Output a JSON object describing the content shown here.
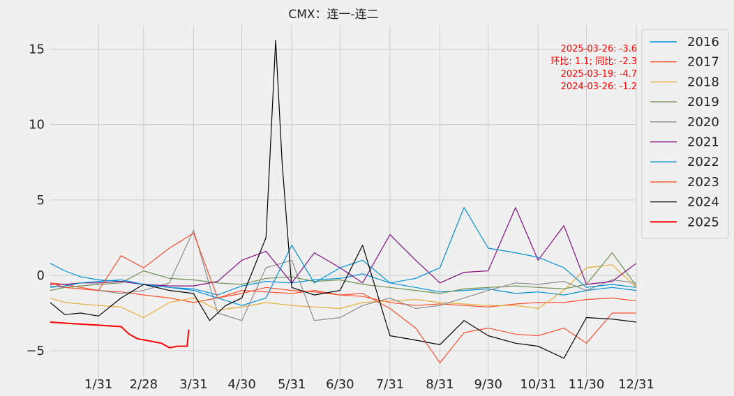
{
  "chart_data": {
    "type": "line",
    "title": "CMX：连一-连二",
    "xlabel": "",
    "ylabel": "",
    "x_ticks": [
      "1/31",
      "2/28",
      "3/31",
      "4/30",
      "5/31",
      "6/30",
      "7/31",
      "8/31",
      "9/30",
      "10/31",
      "11/30",
      "12/31"
    ],
    "x_tick_days": [
      31,
      59,
      90,
      120,
      151,
      181,
      212,
      243,
      273,
      304,
      334,
      365
    ],
    "xlim": [
      1,
      365
    ],
    "ylim": [
      -6.8,
      16.6
    ],
    "y_ticks": [
      -5,
      0,
      5,
      10,
      15
    ],
    "grid": true,
    "legend_position": "right, outside plot",
    "annotation": {
      "color": "#ff0000",
      "lines": [
        "2025-03-26: -3.6",
        "环比: 1.1; 同比: -2.3",
        "2025-03-19: -4.7",
        "2024-03-26: -1.2"
      ]
    },
    "series": [
      {
        "name": "2016",
        "color": "#008fd5",
        "x": [
          1,
          10,
          20,
          31,
          45,
          59,
          75,
          90,
          105,
          120,
          135,
          151,
          165,
          181,
          195,
          212,
          228,
          243,
          258,
          273,
          290,
          304,
          320,
          334,
          350,
          365
        ],
        "y": [
          0.8,
          0.3,
          -0.1,
          -0.3,
          -0.4,
          -0.6,
          -0.8,
          -0.9,
          -1.3,
          -0.7,
          -0.4,
          -0.5,
          -0.3,
          -0.2,
          0.1,
          -0.5,
          -0.8,
          -1.1,
          -1.0,
          -0.9,
          -1.2,
          -1.1,
          -1.3,
          -1.0,
          -0.8,
          -1.0
        ]
      },
      {
        "name": "2017",
        "color": "#fc4f30",
        "x": [
          1,
          10,
          20,
          31,
          45,
          59,
          75,
          90,
          105,
          120,
          135,
          151,
          165,
          181,
          195,
          212,
          228,
          243,
          258,
          273,
          290,
          304,
          320,
          334,
          350,
          365
        ],
        "y": [
          -0.5,
          -0.6,
          -0.8,
          -1.0,
          -1.1,
          -1.3,
          -1.5,
          -1.8,
          -1.5,
          -1.2,
          -0.8,
          -1.0,
          -1.1,
          -1.3,
          -1.4,
          -1.8,
          -2.0,
          -1.9,
          -2.0,
          -2.1,
          -1.9,
          -1.8,
          -1.8,
          -1.6,
          -1.5,
          -1.7
        ]
      },
      {
        "name": "2018",
        "color": "#e5ae38",
        "x": [
          1,
          10,
          20,
          31,
          45,
          59,
          75,
          90,
          105,
          120,
          135,
          151,
          165,
          181,
          195,
          212,
          228,
          243,
          258,
          273,
          290,
          304,
          320,
          334,
          350,
          365
        ],
        "y": [
          -1.5,
          -1.8,
          -1.9,
          -2.0,
          -2.1,
          -2.8,
          -1.8,
          -1.5,
          -2.3,
          -2.1,
          -1.8,
          -2.0,
          -2.1,
          -2.2,
          -1.8,
          -1.7,
          -1.6,
          -1.8,
          -1.9,
          -2.0,
          -2.0,
          -2.2,
          -1.0,
          0.5,
          0.7,
          -0.8
        ]
      },
      {
        "name": "2019",
        "color": "#6d904f",
        "x": [
          1,
          10,
          20,
          31,
          45,
          59,
          75,
          90,
          105,
          120,
          135,
          151,
          165,
          181,
          195,
          212,
          228,
          243,
          258,
          273,
          290,
          304,
          320,
          334,
          350,
          365
        ],
        "y": [
          -1.0,
          -0.8,
          -0.7,
          -0.6,
          -0.5,
          0.3,
          -0.2,
          -0.3,
          -0.5,
          -0.6,
          -0.2,
          -0.1,
          -0.4,
          -0.3,
          -0.6,
          -0.8,
          -1.0,
          -1.2,
          -0.9,
          -0.8,
          -0.7,
          -0.8,
          -0.9,
          -0.6,
          1.5,
          -0.7
        ]
      },
      {
        "name": "2020",
        "color": "#8b8b8b",
        "x": [
          1,
          10,
          20,
          31,
          45,
          59,
          75,
          90,
          105,
          120,
          135,
          151,
          165,
          181,
          195,
          212,
          228,
          243,
          258,
          273,
          290,
          304,
          320,
          334,
          350,
          365
        ],
        "y": [
          -0.7,
          -0.8,
          -0.9,
          -1.0,
          -1.2,
          -1.0,
          -0.5,
          3.0,
          -2.5,
          -3.0,
          0.5,
          1.0,
          -3.0,
          -2.8,
          -2.0,
          -1.5,
          -2.2,
          -2.0,
          -1.5,
          -1.0,
          -0.5,
          -0.6,
          -0.4,
          -1.0,
          -0.3,
          -0.5
        ]
      },
      {
        "name": "2021",
        "color": "#810f7c",
        "x": [
          1,
          10,
          20,
          31,
          45,
          59,
          75,
          90,
          105,
          120,
          135,
          151,
          165,
          181,
          195,
          212,
          228,
          243,
          258,
          273,
          290,
          304,
          320,
          334,
          350,
          365
        ],
        "y": [
          -0.6,
          -0.6,
          -0.5,
          -0.5,
          -0.4,
          -0.6,
          -0.7,
          -0.7,
          -0.4,
          1.0,
          1.6,
          -0.5,
          1.5,
          0.5,
          -0.5,
          2.7,
          1.0,
          -0.5,
          0.2,
          0.3,
          4.5,
          1.0,
          3.3,
          -0.6,
          -0.4,
          0.8
        ]
      },
      {
        "name": "2022",
        "color": "#008fd5",
        "x": [
          1,
          10,
          20,
          31,
          45,
          59,
          75,
          90,
          105,
          120,
          135,
          151,
          165,
          181,
          195,
          212,
          228,
          243,
          258,
          273,
          290,
          304,
          320,
          334,
          350,
          365
        ],
        "y": [
          -0.8,
          -0.7,
          -0.5,
          -0.4,
          -0.3,
          -0.6,
          -0.8,
          -1.0,
          -1.5,
          -2.0,
          -1.5,
          2.0,
          -0.5,
          0.5,
          1.0,
          -0.5,
          -0.2,
          0.5,
          4.5,
          1.8,
          1.5,
          1.2,
          0.5,
          -0.8,
          -0.6,
          -0.8
        ]
      },
      {
        "name": "2023",
        "color": "#fc4f30",
        "x": [
          1,
          10,
          20,
          31,
          45,
          59,
          75,
          90,
          105,
          120,
          135,
          151,
          165,
          181,
          195,
          212,
          228,
          243,
          258,
          273,
          290,
          304,
          320,
          334,
          350,
          365
        ],
        "y": [
          -0.5,
          -0.8,
          -0.9,
          -1.0,
          1.3,
          0.5,
          1.8,
          2.8,
          -1.5,
          -1.0,
          -1.1,
          -1.2,
          -1.0,
          -1.3,
          -1.2,
          -2.2,
          -3.5,
          -5.8,
          -3.8,
          -3.5,
          -3.9,
          -4.0,
          -3.5,
          -4.5,
          -2.5,
          -2.5
        ]
      },
      {
        "name": "2024",
        "color": "#000000",
        "x": [
          1,
          10,
          20,
          31,
          45,
          59,
          75,
          90,
          100,
          110,
          120,
          135,
          141,
          145,
          151,
          165,
          181,
          195,
          212,
          228,
          243,
          258,
          273,
          290,
          304,
          320,
          334,
          350,
          365
        ],
        "y": [
          -1.8,
          -2.6,
          -2.5,
          -2.7,
          -1.5,
          -0.6,
          -1.0,
          -1.2,
          -3.0,
          -2.0,
          -1.5,
          2.5,
          15.6,
          7.5,
          -0.8,
          -1.3,
          -1.0,
          2.0,
          -4.0,
          -4.3,
          -4.6,
          -3.0,
          -4.0,
          -4.5,
          -4.7,
          -5.5,
          -2.8,
          -2.9,
          -3.1
        ]
      },
      {
        "name": "2025",
        "color": "#ff0000",
        "x": [
          1,
          15,
          30,
          45,
          50,
          55,
          60,
          70,
          75,
          80,
          86,
          87
        ],
        "y": [
          -3.1,
          -3.2,
          -3.3,
          -3.4,
          -3.9,
          -4.2,
          -4.3,
          -4.5,
          -4.8,
          -4.7,
          -4.7,
          -3.6
        ]
      }
    ]
  }
}
